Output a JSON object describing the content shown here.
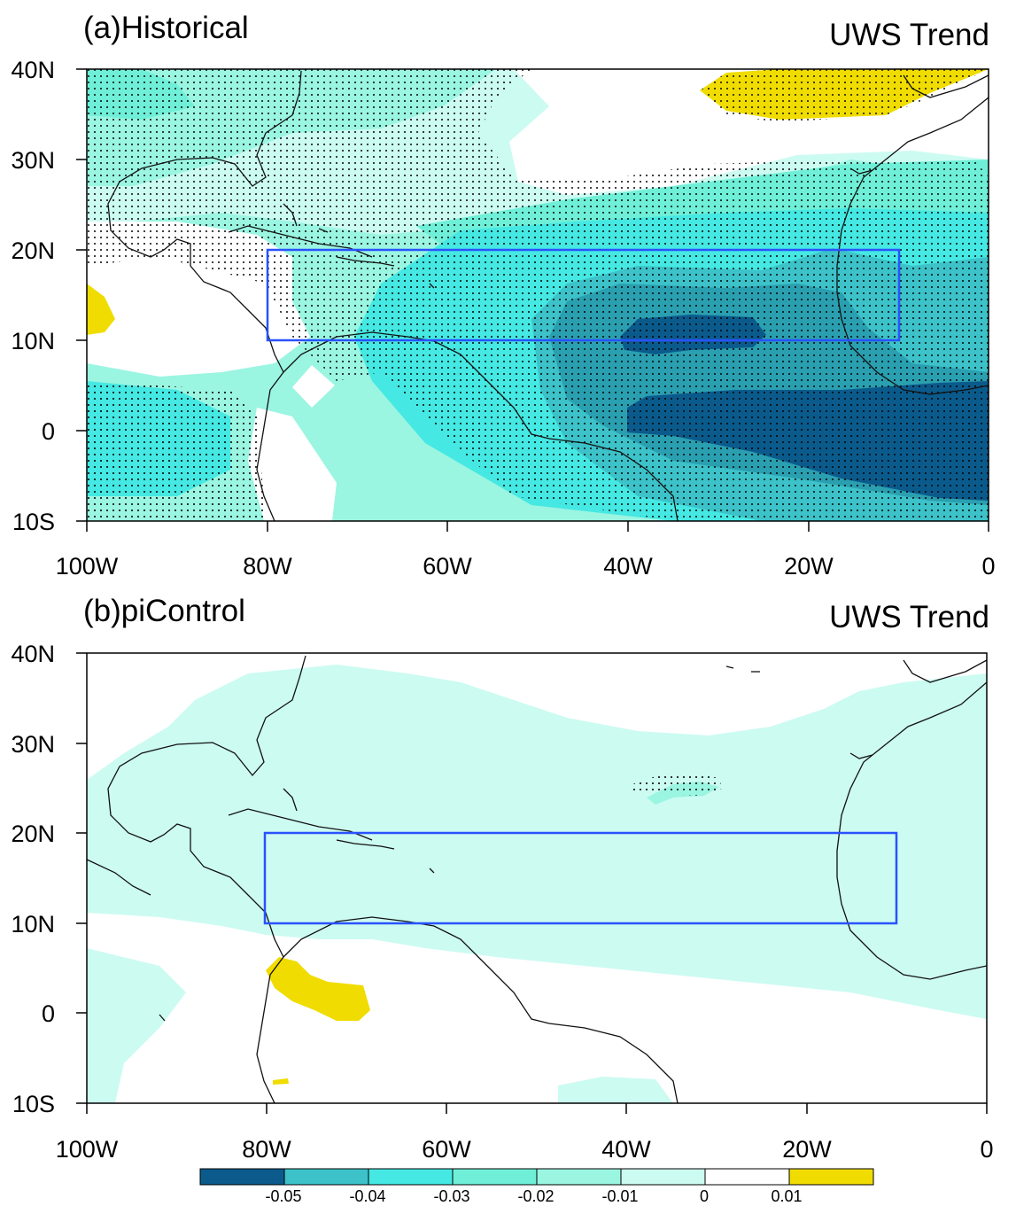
{
  "panels": [
    {
      "label": "(a)Historical",
      "title": "UWS Trend",
      "lat_ticks": [
        "40N",
        "30N",
        "20N",
        "10N",
        "0",
        "10S"
      ],
      "lon_ticks": [
        "100W",
        "80W",
        "60W",
        "40W",
        "20W",
        "0"
      ]
    },
    {
      "label": "(b)piControl",
      "title": "UWS Trend",
      "lat_ticks": [
        "40N",
        "30N",
        "20N",
        "10N",
        "0",
        "10S"
      ],
      "lon_ticks": [
        "100W",
        "80W",
        "60W",
        "40W",
        "20W",
        "0"
      ]
    }
  ],
  "region_box": {
    "lon": [
      -80,
      -10
    ],
    "lat": [
      10,
      20
    ],
    "color": "#2a52ff"
  },
  "colorbar": {
    "labels": [
      "-0.05",
      "-0.04",
      "-0.03",
      "-0.02",
      "-0.01",
      "0",
      "0.01"
    ],
    "colors": [
      "#0b5a8c",
      "#3cc2c8",
      "#45e8e2",
      "#6fefd7",
      "#9af5e1",
      "#ccfbf1",
      "#ffffff",
      "#f0dc00"
    ]
  },
  "colors": {
    "lev1": "#0b5a8c",
    "lev2": "#3cc2c8",
    "lev3": "#45e8e2",
    "lev4": "#6fefd7",
    "lev5": "#9af5e1",
    "lev6": "#ccfbf1",
    "positive": "#f0dc00"
  },
  "map_domain": {
    "lon": [
      -100,
      0
    ],
    "lat": [
      -10,
      40
    ]
  }
}
